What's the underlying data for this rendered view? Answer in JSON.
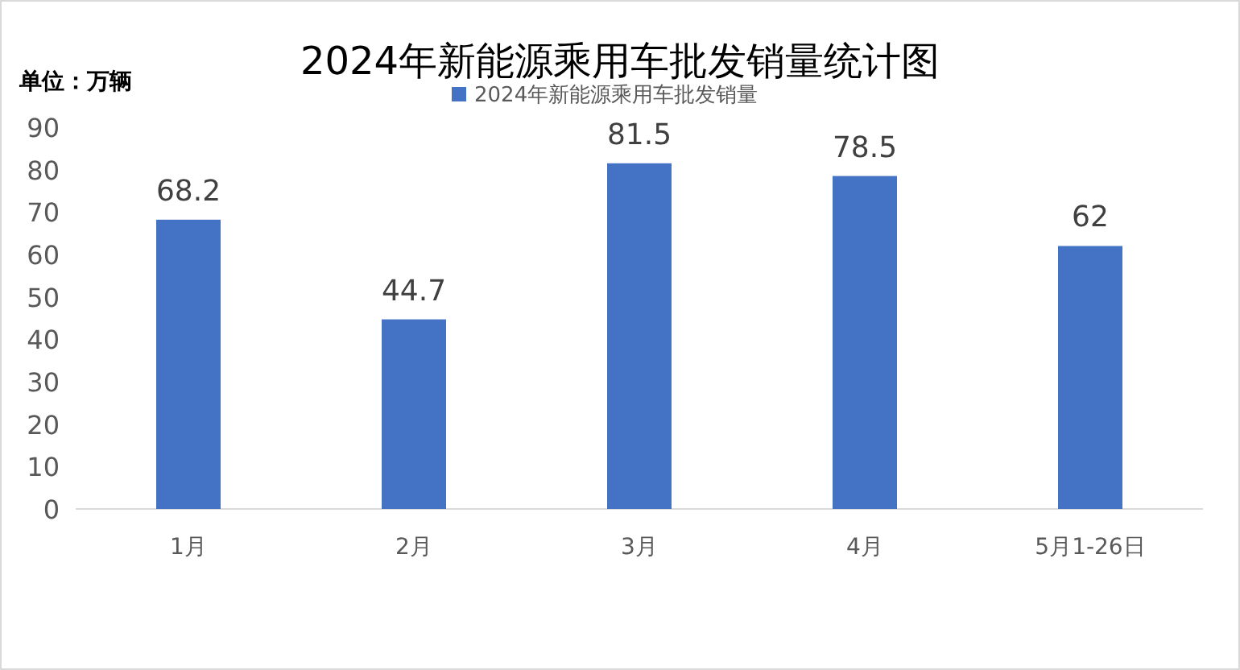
{
  "chart_data": {
    "type": "bar",
    "title": "2024年新能源乘用车批发销量统计图",
    "ylabel": "单位：万辆",
    "categories": [
      "1月",
      "2月",
      "3月",
      "4月",
      "5月1-26日"
    ],
    "series": [
      {
        "name": "2024年新能源乘用车批发销量",
        "color": "#4472c4",
        "values": [
          68.2,
          44.7,
          81.5,
          78.5,
          62
        ]
      }
    ],
    "ylim": [
      0,
      90
    ],
    "yticks": [
      0,
      10,
      20,
      30,
      40,
      50,
      60,
      70,
      80,
      90
    ],
    "data_labels": true,
    "legend": "top"
  }
}
